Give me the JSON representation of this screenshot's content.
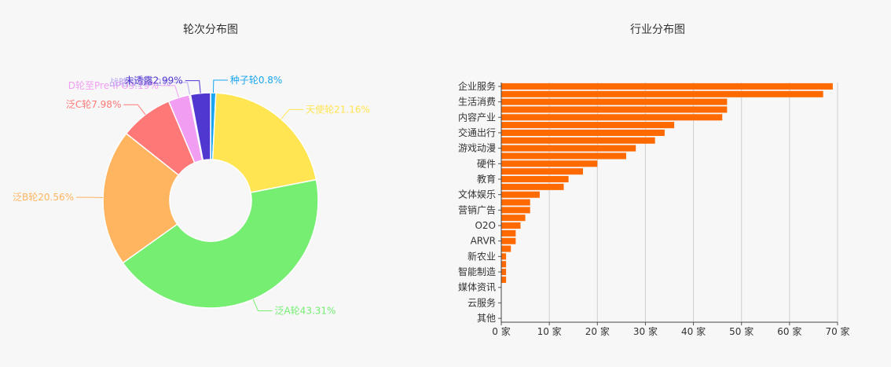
{
  "chart_data": [
    {
      "type": "pie",
      "title": "轮次分布图",
      "slices": [
        {
          "label": "种子轮0.8%",
          "value": 0.8,
          "color": "#1aa6f0"
        },
        {
          "label": "天使轮21.16%",
          "value": 21.16,
          "color": "#ffe552"
        },
        {
          "label": "泛A轮43.31%",
          "value": 43.31,
          "color": "#75ee72"
        },
        {
          "label": "泛B轮20.56%",
          "value": 20.56,
          "color": "#ffb560"
        },
        {
          "label": "泛C轮7.98%",
          "value": 7.98,
          "color": "#ff7878"
        },
        {
          "label": "D轮至Pre-IPO3.19%",
          "value": 3.19,
          "color": "#f19ef2"
        },
        {
          "label": "战略投资0.2%",
          "value": 0.2,
          "color": "#b9a6f2"
        },
        {
          "label": "未透露2.99%",
          "value": 2.99,
          "color": "#4f37cf"
        }
      ]
    },
    {
      "type": "bar",
      "orientation": "horizontal",
      "title": "行业分布图",
      "color": "#ff6a00",
      "x_unit": "家",
      "xlim": [
        0,
        70
      ],
      "xticks": [
        0,
        10,
        20,
        30,
        40,
        50,
        60,
        70
      ],
      "tick_labels": [
        "0 家",
        "10 家",
        "20 家",
        "30 家",
        "40 家",
        "50 家",
        "60 家",
        "70 家"
      ],
      "grid": true,
      "categories": [
        {
          "label": "企业服务",
          "value": 69
        },
        {
          "label": "",
          "value": 67
        },
        {
          "label": "生活消费",
          "value": 47
        },
        {
          "label": "",
          "value": 47
        },
        {
          "label": "内容产业",
          "value": 46
        },
        {
          "label": "",
          "value": 36
        },
        {
          "label": "交通出行",
          "value": 34
        },
        {
          "label": "",
          "value": 32
        },
        {
          "label": "游戏动漫",
          "value": 28
        },
        {
          "label": "",
          "value": 26
        },
        {
          "label": "硬件",
          "value": 20
        },
        {
          "label": "",
          "value": 17
        },
        {
          "label": "教育",
          "value": 14
        },
        {
          "label": "",
          "value": 13
        },
        {
          "label": "文体娱乐",
          "value": 8
        },
        {
          "label": "",
          "value": 6
        },
        {
          "label": "营销广告",
          "value": 6
        },
        {
          "label": "",
          "value": 5
        },
        {
          "label": "O2O",
          "value": 4
        },
        {
          "label": "",
          "value": 3
        },
        {
          "label": "ARVR",
          "value": 3
        },
        {
          "label": "",
          "value": 2
        },
        {
          "label": "新农业",
          "value": 1
        },
        {
          "label": "",
          "value": 1
        },
        {
          "label": "智能制造",
          "value": 1
        },
        {
          "label": "",
          "value": 1
        },
        {
          "label": "媒体资讯",
          "value": 0
        },
        {
          "label": "",
          "value": 0
        },
        {
          "label": "云服务",
          "value": 0
        },
        {
          "label": "",
          "value": 0
        },
        {
          "label": "其他",
          "value": 0
        }
      ]
    }
  ]
}
